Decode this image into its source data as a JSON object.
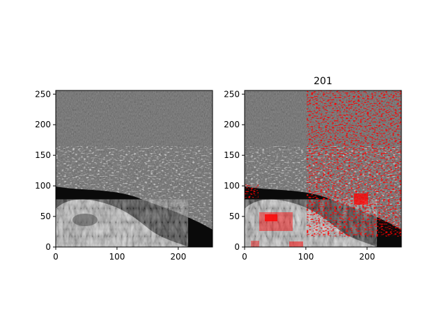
{
  "chart_data": [
    {
      "type": "heatmap",
      "title": "",
      "xlabel": "",
      "ylabel": "",
      "xlim": [
        0,
        256
      ],
      "ylim": [
        0,
        256
      ],
      "xticks": [
        0,
        100,
        200
      ],
      "yticks": [
        0,
        50,
        100,
        150,
        200,
        250
      ],
      "xtick_labels": [
        "0",
        "100",
        "200"
      ],
      "ytick_labels": [
        "0",
        "50",
        "100",
        "150",
        "200",
        "250"
      ],
      "image": "grayscale satellite-style texture: dark water with scattered bright speckles in the upper half, dark band near y≈70–100, bright textured land mass at lower-left and bottom",
      "grid": false
    },
    {
      "type": "heatmap",
      "title": "201",
      "xlabel": "",
      "ylabel": "",
      "xlim": [
        0,
        256
      ],
      "ylim": [
        0,
        256
      ],
      "xticks": [
        0,
        100,
        200
      ],
      "yticks": [
        0,
        50,
        100,
        150,
        200,
        250
      ],
      "xtick_labels": [
        "0",
        "100",
        "200"
      ],
      "ytick_labels": [
        "0",
        "50",
        "100",
        "150",
        "200",
        "250"
      ],
      "image": "same grayscale image with red overlay highlighting bright speckles on the right side and rectangular patches at lower-left",
      "overlay_color": "#ff0000",
      "grid": false
    }
  ]
}
